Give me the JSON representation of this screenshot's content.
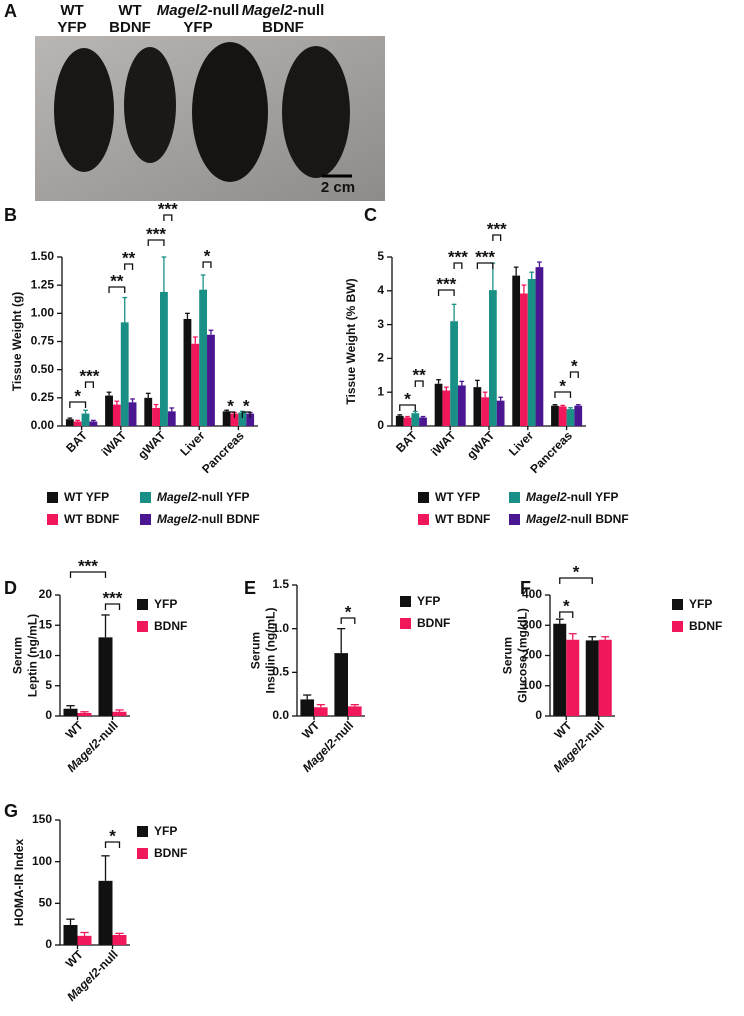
{
  "panel_a": {
    "letter": "A",
    "groups": [
      {
        "line1": "WT",
        "line2": "YFP"
      },
      {
        "line1": "WT",
        "line2": "BDNF"
      },
      {
        "line1": "Magel2-null",
        "line2": "YFP"
      },
      {
        "line1": "Magel2-null",
        "line2": "BDNF"
      }
    ],
    "scale_bar": "2 cm"
  },
  "chart_data": [
    {
      "type": "bar",
      "letter": "B",
      "ylabel": [
        "Tissue Weight (g)"
      ],
      "categories": [
        "BAT",
        "iWAT",
        "gWAT",
        "Liver",
        "Pancreas"
      ],
      "series": [
        {
          "name": "WT YFP",
          "color": "#111111",
          "values": [
            0.06,
            0.27,
            0.25,
            0.95,
            0.13
          ],
          "errors": [
            0.01,
            0.03,
            0.04,
            0.05,
            0.01
          ]
        },
        {
          "name": "WT BDNF",
          "color": "#f0185a",
          "values": [
            0.04,
            0.19,
            0.16,
            0.73,
            0.11
          ],
          "errors": [
            0.01,
            0.03,
            0.03,
            0.06,
            0.01
          ]
        },
        {
          "name": "Magel2-null YFP",
          "color": "#1a8f86",
          "values": [
            0.11,
            0.92,
            1.19,
            1.21,
            0.12
          ],
          "errors": [
            0.03,
            0.22,
            0.31,
            0.13,
            0.01
          ]
        },
        {
          "name": "Magel2-null BDNF",
          "color": "#4b1691",
          "values": [
            0.04,
            0.21,
            0.13,
            0.81,
            0.11
          ],
          "errors": [
            0.01,
            0.03,
            0.03,
            0.04,
            0.01
          ]
        }
      ],
      "ylim": [
        0,
        1.5
      ],
      "yticks": [
        {
          "value": 0,
          "label": "0.00"
        },
        0.25,
        {
          "value": 0.5,
          "label": "0.50"
        },
        0.75,
        {
          "value": 1,
          "label": "1.00"
        },
        1.25,
        {
          "value": 1.5,
          "label": "1.50"
        }
      ],
      "annotations": [
        "*",
        "***",
        "**",
        "**",
        "***",
        "***",
        "*",
        "*",
        "*"
      ]
    },
    {
      "type": "bar",
      "letter": "C",
      "ylabel": [
        "Tissue Weight (% BW)"
      ],
      "categories": [
        "BAT",
        "iWAT",
        "gWAT",
        "Liver",
        "Pancreas"
      ],
      "series": [
        {
          "name": "WT YFP",
          "color": "#111111",
          "values": [
            0.3,
            1.25,
            1.15,
            4.45,
            0.6
          ],
          "errors": [
            0.03,
            0.12,
            0.2,
            0.25,
            0.03
          ]
        },
        {
          "name": "WT BDNF",
          "color": "#f0185a",
          "values": [
            0.25,
            1.05,
            0.85,
            3.92,
            0.58
          ],
          "errors": [
            0.03,
            0.1,
            0.15,
            0.25,
            0.03
          ]
        },
        {
          "name": "Magel2-null YFP",
          "color": "#1a8f86",
          "values": [
            0.38,
            3.1,
            4.02,
            4.35,
            0.5
          ],
          "errors": [
            0.05,
            0.5,
            0.8,
            0.2,
            0.04
          ]
        },
        {
          "name": "Magel2-null BDNF",
          "color": "#4b1691",
          "values": [
            0.25,
            1.2,
            0.75,
            4.7,
            0.6
          ],
          "errors": [
            0.03,
            0.12,
            0.1,
            0.15,
            0.03
          ]
        }
      ],
      "ylim": [
        0,
        5
      ],
      "yticks": [
        0,
        1,
        2,
        3,
        4,
        5
      ],
      "annotations": [
        "*",
        "**",
        "***",
        "***",
        "***",
        "***",
        "*",
        "*"
      ]
    },
    {
      "type": "bar",
      "letter": "D",
      "ylabel": [
        "Serum",
        "Leptin (ng/mL)"
      ],
      "categories": [
        "WT",
        "Magel2-null"
      ],
      "series": [
        {
          "name": "YFP",
          "color": "#111111",
          "values": [
            1.2,
            13
          ],
          "errors": [
            0.5,
            3.7
          ]
        },
        {
          "name": "BDNF",
          "color": "#f0185a",
          "values": [
            0.5,
            0.7
          ],
          "errors": [
            0.2,
            0.3
          ]
        }
      ],
      "ylim": [
        0,
        20
      ],
      "yticks": [
        0,
        5,
        10,
        15,
        20
      ],
      "annotations": [
        "***",
        "***"
      ]
    },
    {
      "type": "bar",
      "letter": "E",
      "ylabel": [
        "Serum",
        "Insulin (ng/mL)"
      ],
      "categories": [
        "WT",
        "Magel2-null"
      ],
      "series": [
        {
          "name": "YFP",
          "color": "#111111",
          "values": [
            0.19,
            0.72
          ],
          "errors": [
            0.05,
            0.28
          ]
        },
        {
          "name": "BDNF",
          "color": "#f0185a",
          "values": [
            0.1,
            0.11
          ],
          "errors": [
            0.03,
            0.02
          ]
        }
      ],
      "ylim": [
        0,
        1.5
      ],
      "yticks": [
        {
          "value": 0,
          "label": "0.0"
        },
        0.5,
        {
          "value": 1,
          "label": "1.0"
        },
        1.5
      ],
      "annotations": [
        "*"
      ]
    },
    {
      "type": "bar",
      "letter": "F",
      "ylabel": [
        "Serum",
        "Glucose (mg/dL)"
      ],
      "categories": [
        "WT",
        "Magel2-null"
      ],
      "series": [
        {
          "name": "YFP",
          "color": "#111111",
          "values": [
            305,
            250
          ],
          "errors": [
            15,
            12
          ]
        },
        {
          "name": "BDNF",
          "color": "#f0185a",
          "values": [
            252,
            252
          ],
          "errors": [
            20,
            10
          ]
        }
      ],
      "ylim": [
        0,
        400
      ],
      "yticks": [
        0,
        100,
        200,
        300,
        400
      ],
      "annotations": [
        "*",
        "*"
      ]
    },
    {
      "type": "bar",
      "letter": "G",
      "ylabel": [
        "HOMA-IR Index"
      ],
      "categories": [
        "WT",
        "Magel2-null"
      ],
      "series": [
        {
          "name": "YFP",
          "color": "#111111",
          "values": [
            24,
            77
          ],
          "errors": [
            7,
            30
          ]
        },
        {
          "name": "BDNF",
          "color": "#f0185a",
          "values": [
            11,
            12
          ],
          "errors": [
            4,
            2
          ]
        }
      ],
      "ylim": [
        0,
        150
      ],
      "yticks": [
        0,
        50,
        100,
        150
      ],
      "annotations": [
        "*"
      ]
    }
  ]
}
